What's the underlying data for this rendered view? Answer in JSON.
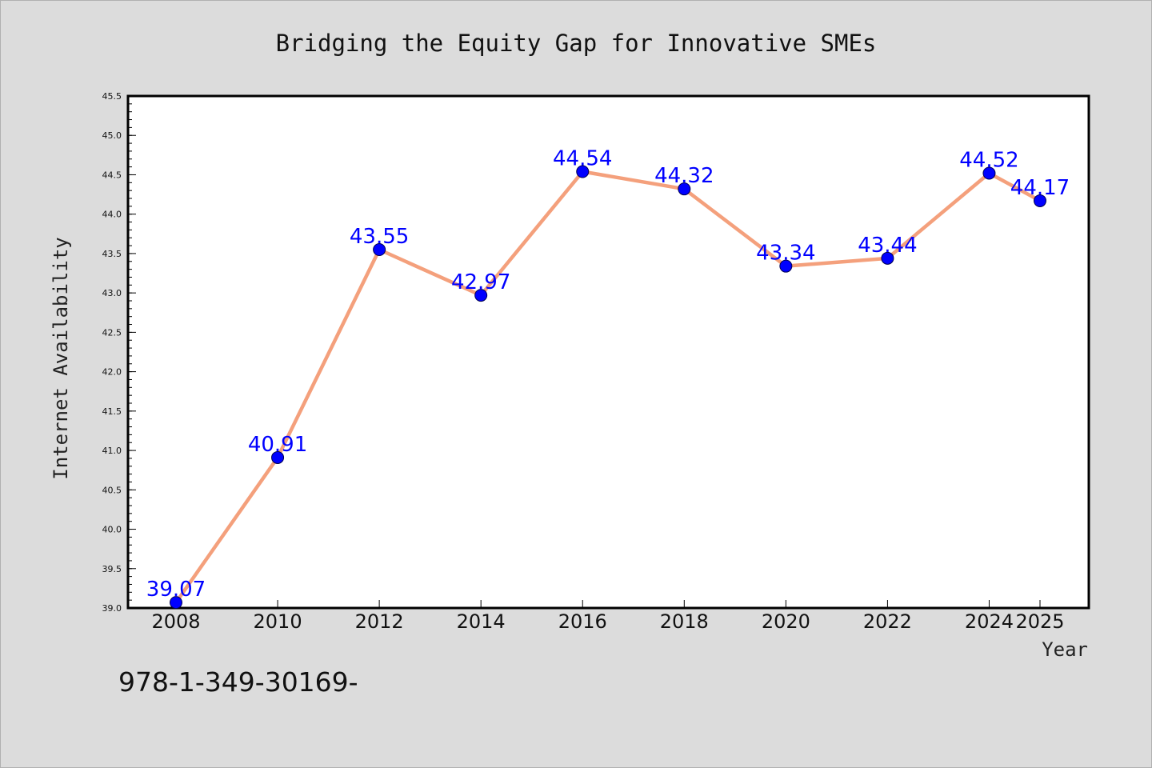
{
  "chart_data": {
    "type": "line",
    "title": "Bridging the Equity Gap for Innovative SMEs",
    "xlabel": "Year",
    "ylabel": "Internet Availability",
    "x": [
      "2008",
      "2010",
      "2012",
      "2014",
      "2016",
      "2018",
      "2020",
      "2022",
      "2024",
      "2025"
    ],
    "series": [
      {
        "values": [
          39.07,
          40.91,
          43.55,
          42.97,
          44.54,
          44.32,
          43.34,
          43.44,
          44.52,
          44.17
        ],
        "labels": [
          "39.07",
          "40.91",
          "43.55",
          "42.97",
          "44.54",
          "44.32",
          "43.34",
          "43.44",
          "44.52",
          "44.17"
        ],
        "line_color": "#f4a07c",
        "marker_color": "#0000ff",
        "label_color": "#0000ff"
      }
    ],
    "ylim": [
      39.0,
      45.5
    ],
    "yticks": [
      "39.0",
      "39.5",
      "40.0",
      "40.5",
      "41.0",
      "41.5",
      "42.0",
      "42.5",
      "43.0",
      "43.5",
      "44.0",
      "44.5",
      "45.0",
      "45.5"
    ],
    "grid": false,
    "legend": "none"
  },
  "footnote": "978-1-349-30169-",
  "colors": {
    "background": "#dcdcdc",
    "plot_background": "#ffffff"
  }
}
